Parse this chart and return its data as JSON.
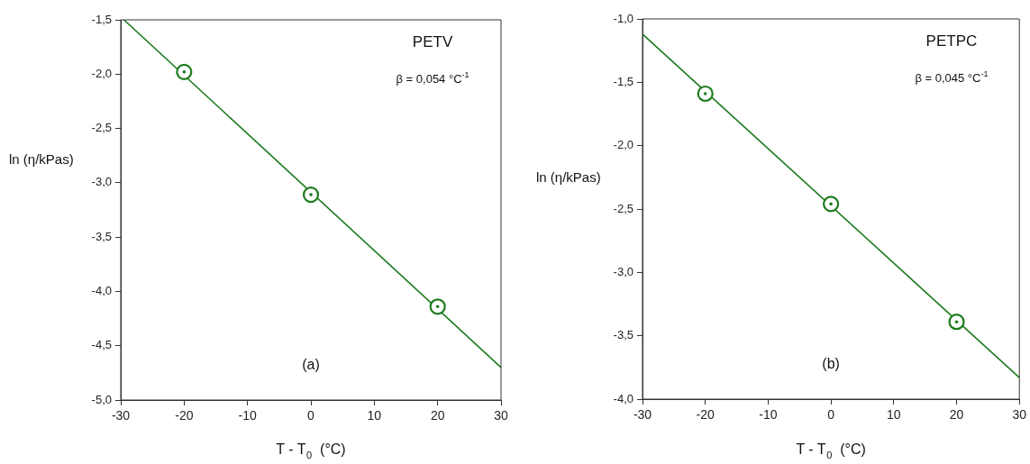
{
  "chart_data": [
    {
      "type": "scatter",
      "xlabel": "T - T$_{0}$  (°C)",
      "ylabel": "ln (η/kPas)",
      "annotations": [
        "PETV",
        "β = 0,054 °C$^{-1}$",
        "(a)"
      ],
      "series": [
        {
          "color": "#1e7b1e",
          "marker": "circle",
          "x": [
            -20,
            0,
            20
          ],
          "values": [
            -1.98,
            -3.11,
            -4.14
          ]
        },
        {
          "type": "line",
          "color": "#1e7b1e",
          "x": [
            -29.5,
            30
          ],
          "values": [
            -1.5,
            -4.7
          ]
        }
      ],
      "xlim": [
        -30,
        30
      ],
      "xticks": [
        -30,
        -20,
        -10,
        0,
        10,
        20,
        30
      ],
      "ylim": [
        -5,
        -1.5
      ],
      "yticks": [
        {
          "value": -5,
          "label": "-5,0"
        },
        {
          "value": -4.5,
          "label": "-4,5"
        },
        {
          "value": -4,
          "label": "-4,0"
        },
        {
          "value": -3.5,
          "label": "-3,5"
        },
        {
          "value": -3,
          "label": "-3,0"
        },
        {
          "value": -2.5,
          "label": "-2,5"
        },
        {
          "value": -2,
          "label": "-2,0"
        },
        {
          "value": -1.5,
          "label": "-1,5"
        }
      ]
    },
    {
      "type": "scatter",
      "xlabel": "T - T$_{0}$  (°C)",
      "ylabel": "ln (η/kPas)",
      "annotations": [
        "PETPC",
        "β = 0,045 °C$^{-1}$",
        "(b)"
      ],
      "series": [
        {
          "color": "#1e7b1e",
          "marker": "circle",
          "x": [
            -20,
            0,
            20
          ],
          "values": [
            -1.59,
            -2.46,
            -3.39
          ]
        },
        {
          "type": "line",
          "color": "#1e7b1e",
          "x": [
            -30,
            30
          ],
          "values": [
            -1.12,
            -3.83
          ]
        }
      ],
      "xlim": [
        -30,
        30
      ],
      "xticks": [
        -30,
        -20,
        -10,
        0,
        10,
        20,
        30
      ],
      "ylim": [
        -4,
        -1
      ],
      "yticks": [
        {
          "value": -4,
          "label": "-4,0"
        },
        {
          "value": -3.5,
          "label": "-3,5"
        },
        {
          "value": -3,
          "label": "-3,0"
        },
        {
          "value": -2.5,
          "label": "-2,5"
        },
        {
          "value": -2,
          "label": "-2,0"
        },
        {
          "value": -1.5,
          "label": "-1,5"
        },
        {
          "value": -1,
          "label": "-1,0"
        }
      ]
    }
  ]
}
